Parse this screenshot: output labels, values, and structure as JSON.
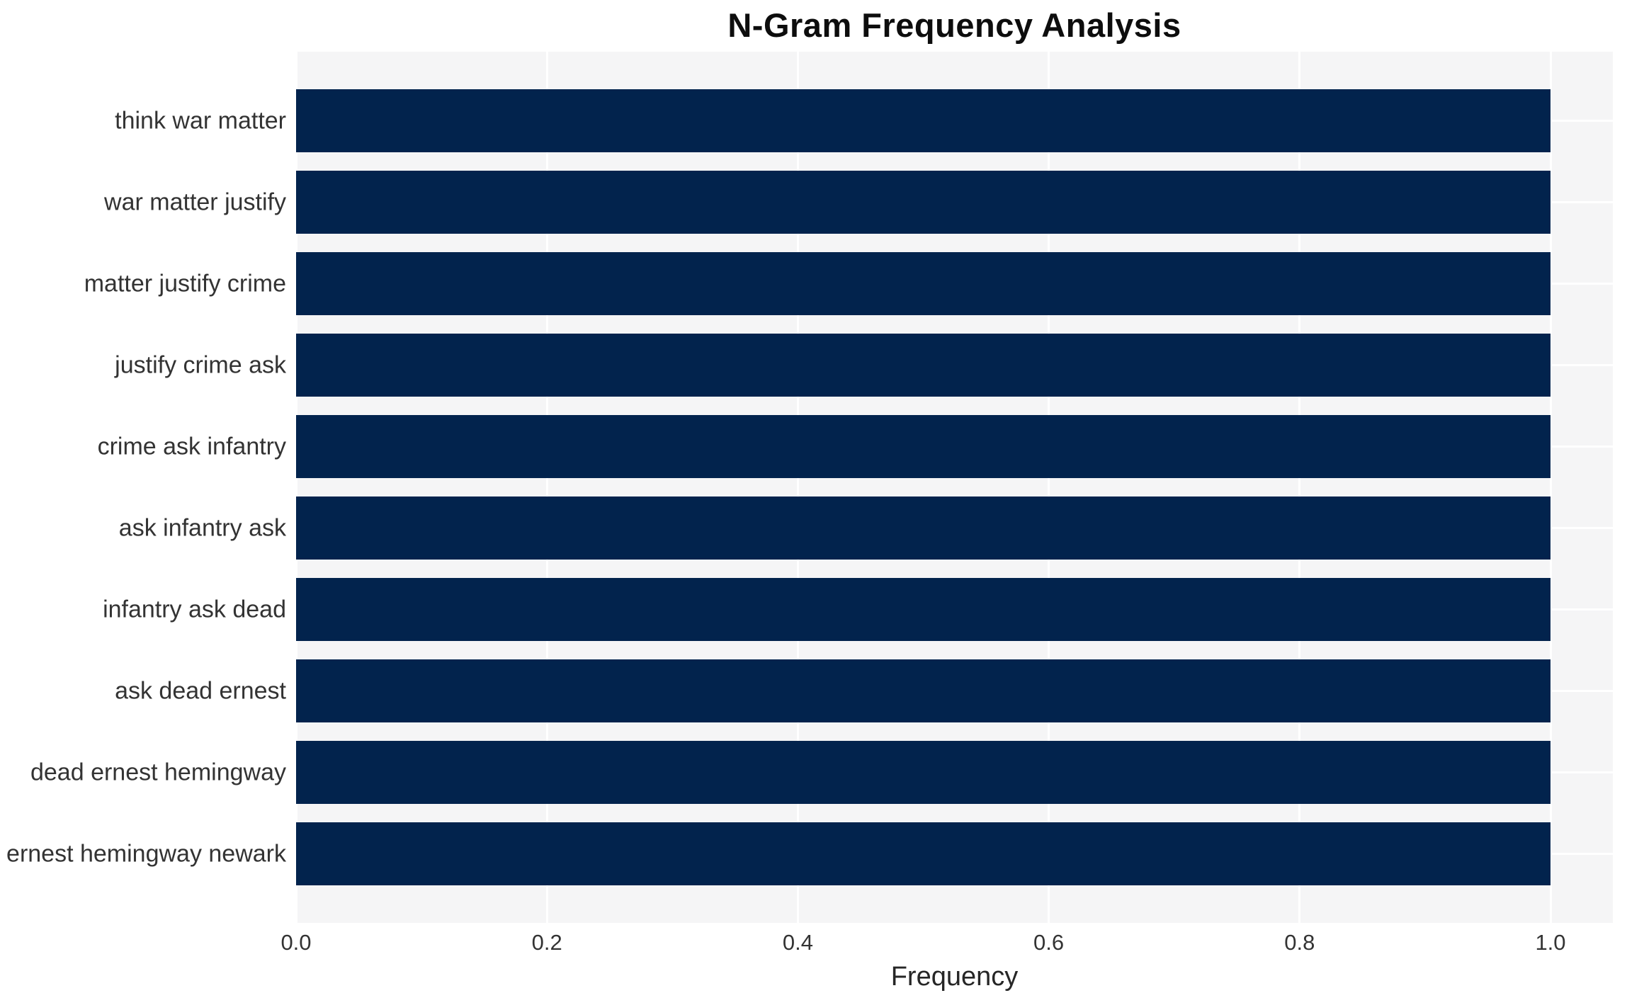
{
  "chart_data": {
    "type": "bar",
    "orientation": "horizontal",
    "title": "N-Gram Frequency Analysis",
    "xlabel": "Frequency",
    "ylabel": "",
    "categories": [
      "think war matter",
      "war matter justify",
      "matter justify crime",
      "justify crime ask",
      "crime ask infantry",
      "ask infantry ask",
      "infantry ask dead",
      "ask dead ernest",
      "dead ernest hemingway",
      "ernest hemingway newark"
    ],
    "values": [
      1.0,
      1.0,
      1.0,
      1.0,
      1.0,
      1.0,
      1.0,
      1.0,
      1.0,
      1.0
    ],
    "xticks": [
      "0.0",
      "0.2",
      "0.4",
      "0.6",
      "0.8",
      "1.0"
    ],
    "xlim": [
      0,
      1.05
    ],
    "grid": true,
    "legend": false,
    "bar_color": "#02234d",
    "plot_bg_color": "#f5f5f6",
    "grid_color": "#ffffff",
    "text_color": "#333333",
    "title_color": "#0d0d0d"
  }
}
